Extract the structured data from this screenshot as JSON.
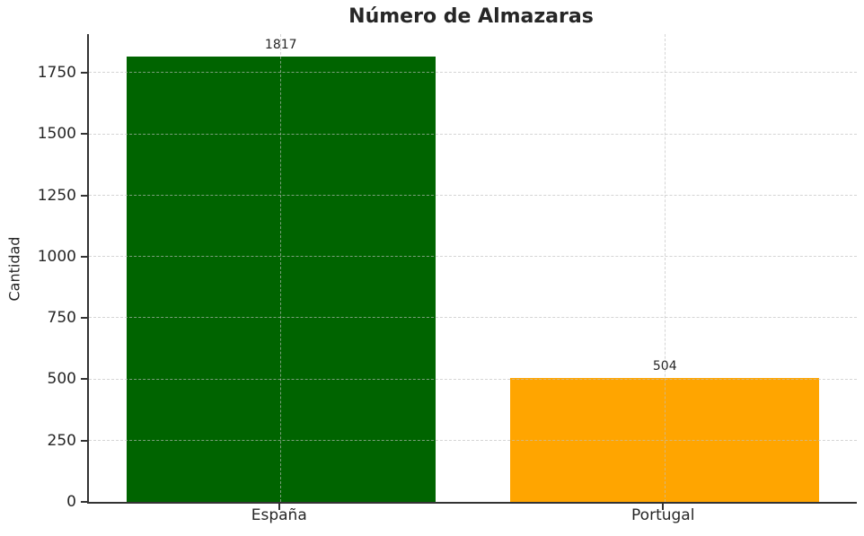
{
  "chart_data": {
    "type": "bar",
    "title": "Número de Almazaras",
    "ylabel": "Cantidad",
    "xlabel": "",
    "categories": [
      "España",
      "Portugal"
    ],
    "values": [
      1817,
      504
    ],
    "value_labels": [
      "1817",
      "504"
    ],
    "bar_colors": [
      "#006400",
      "#FFA500"
    ],
    "yticks": [
      0,
      250,
      500,
      750,
      1000,
      1250,
      1500,
      1750
    ],
    "ylim": [
      0,
      1908
    ],
    "grid": "dashed gridlines on both axes, drawn above bars",
    "legend": "none",
    "colors": {
      "spine": "#333333",
      "text": "#262626",
      "gridline": "#bebebe",
      "background": "#ffffff"
    }
  }
}
